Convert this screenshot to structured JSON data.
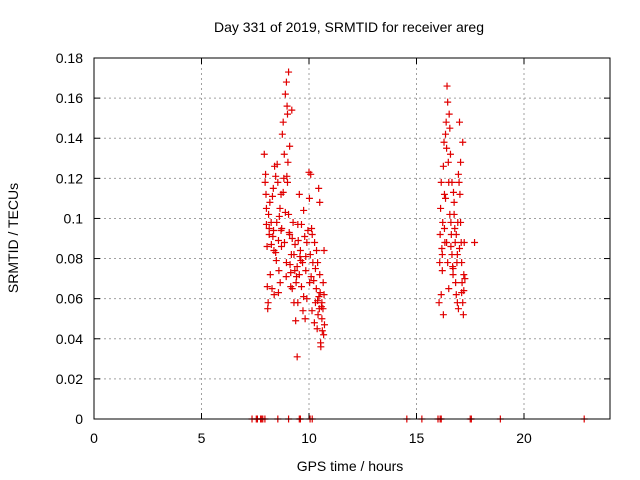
{
  "chart_data": {
    "type": "scatter",
    "title": "Day 331 of 2019, SRMTID for receiver areg",
    "xlabel": "GPS time / hours",
    "ylabel": "SRMTID / TECUs",
    "xlim": [
      0,
      24
    ],
    "ylim": [
      0,
      0.18
    ],
    "x_ticks": [
      0,
      5,
      10,
      15,
      20
    ],
    "x_tick_labels": [
      "0",
      "5",
      "10",
      "15",
      "20"
    ],
    "y_ticks": [
      0,
      0.02,
      0.04,
      0.06,
      0.08,
      0.1,
      0.12,
      0.14,
      0.16,
      0.18
    ],
    "y_tick_labels": [
      "0",
      "0.02",
      "0.04",
      "0.06",
      "0.08",
      "0.1",
      "0.12",
      "0.14",
      "0.16",
      "0.18"
    ],
    "grid": true,
    "marker": "+",
    "series": [
      {
        "name": "SRMTID",
        "color": "#e00000",
        "points": [
          [
            7.35,
            0.0
          ],
          [
            7.55,
            0.0
          ],
          [
            7.6,
            0.0
          ],
          [
            7.75,
            0.0
          ],
          [
            7.8,
            0.0
          ],
          [
            7.85,
            0.0
          ],
          [
            7.95,
            0.0
          ],
          [
            8.55,
            0.0
          ],
          [
            9.05,
            0.0
          ],
          [
            9.55,
            0.0
          ],
          [
            9.6,
            0.0
          ],
          [
            10.05,
            0.0
          ],
          [
            10.15,
            0.0
          ],
          [
            14.55,
            0.0
          ],
          [
            15.25,
            0.0
          ],
          [
            16.0,
            0.0
          ],
          [
            16.1,
            0.0
          ],
          [
            16.15,
            0.0
          ],
          [
            17.5,
            0.0
          ],
          [
            17.55,
            0.0
          ],
          [
            18.9,
            0.0
          ],
          [
            22.8,
            0.0
          ],
          [
            7.92,
            0.132
          ],
          [
            7.96,
            0.118
          ],
          [
            8.0,
            0.112
          ],
          [
            8.02,
            0.097
          ],
          [
            8.05,
            0.086
          ],
          [
            8.06,
            0.066
          ],
          [
            8.08,
            0.055
          ],
          [
            8.1,
            0.058
          ],
          [
            8.12,
            0.102
          ],
          [
            8.15,
            0.092
          ],
          [
            8.18,
            0.108
          ],
          [
            8.2,
            0.072
          ],
          [
            8.24,
            0.098
          ],
          [
            8.28,
            0.065
          ],
          [
            8.3,
            0.111
          ],
          [
            8.34,
            0.115
          ],
          [
            8.37,
            0.084
          ],
          [
            8.4,
            0.126
          ],
          [
            8.45,
            0.121
          ],
          [
            8.48,
            0.079
          ],
          [
            8.52,
            0.127
          ],
          [
            8.55,
            0.118
          ],
          [
            8.58,
            0.089
          ],
          [
            8.62,
            0.101
          ],
          [
            8.66,
            0.068
          ],
          [
            8.7,
            0.112
          ],
          [
            8.73,
            0.095
          ],
          [
            8.76,
            0.142
          ],
          [
            8.8,
            0.148
          ],
          [
            8.83,
            0.12
          ],
          [
            8.86,
            0.088
          ],
          [
            8.9,
            0.103
          ],
          [
            8.94,
            0.071
          ],
          [
            8.97,
            0.121
          ],
          [
            9.0,
            0.118
          ],
          [
            9.02,
            0.128
          ],
          [
            9.05,
            0.102
          ],
          [
            9.08,
            0.093
          ],
          [
            9.12,
            0.077
          ],
          [
            9.15,
            0.066
          ],
          [
            9.18,
            0.082
          ],
          [
            9.22,
            0.065
          ],
          [
            9.26,
            0.098
          ],
          [
            9.3,
            0.058
          ],
          [
            9.34,
            0.074
          ],
          [
            9.38,
            0.049
          ],
          [
            9.42,
            0.071
          ],
          [
            9.45,
            0.031
          ],
          [
            9.48,
            0.058
          ],
          [
            9.5,
            0.089
          ],
          [
            9.55,
            0.072
          ],
          [
            9.6,
            0.084
          ],
          [
            9.65,
            0.066
          ],
          [
            9.7,
            0.078
          ],
          [
            9.75,
            0.061
          ],
          [
            9.8,
            0.091
          ],
          [
            9.85,
            0.074
          ],
          [
            9.9,
            0.088
          ],
          [
            9.95,
            0.094
          ],
          [
            10.0,
            0.123
          ],
          [
            10.03,
            0.068
          ],
          [
            10.06,
            0.082
          ],
          [
            10.1,
            0.071
          ],
          [
            10.14,
            0.054
          ],
          [
            10.18,
            0.078
          ],
          [
            10.22,
            0.069
          ],
          [
            10.26,
            0.088
          ],
          [
            10.3,
            0.058
          ],
          [
            10.34,
            0.065
          ],
          [
            10.38,
            0.045
          ],
          [
            10.42,
            0.052
          ],
          [
            10.46,
            0.061
          ],
          [
            10.5,
            0.072
          ],
          [
            10.54,
            0.038
          ],
          [
            10.58,
            0.056
          ],
          [
            10.62,
            0.044
          ],
          [
            10.66,
            0.068
          ],
          [
            10.7,
            0.084
          ],
          [
            8.95,
            0.168
          ],
          [
            9.05,
            0.173
          ],
          [
            9.1,
            0.136
          ],
          [
            8.98,
            0.156
          ],
          [
            8.9,
            0.162
          ],
          [
            9.0,
            0.152
          ],
          [
            9.2,
            0.154
          ],
          [
            8.85,
            0.132
          ],
          [
            9.1,
            0.092
          ],
          [
            8.8,
            0.113
          ],
          [
            8.35,
            0.094
          ],
          [
            9.15,
            0.073
          ],
          [
            8.65,
            0.105
          ],
          [
            8.45,
            0.083
          ],
          [
            9.35,
            0.087
          ],
          [
            9.55,
            0.112
          ],
          [
            9.65,
            0.097
          ],
          [
            9.75,
            0.104
          ],
          [
            10.02,
            0.11
          ],
          [
            10.08,
            0.122
          ],
          [
            10.45,
            0.115
          ],
          [
            10.5,
            0.108
          ],
          [
            10.35,
            0.084
          ],
          [
            10.15,
            0.092
          ],
          [
            9.9,
            0.06
          ],
          [
            9.72,
            0.054
          ],
          [
            9.82,
            0.05
          ],
          [
            10.25,
            0.048
          ],
          [
            10.48,
            0.055
          ],
          [
            10.52,
            0.063
          ],
          [
            10.6,
            0.058
          ],
          [
            10.68,
            0.042
          ],
          [
            10.72,
            0.047
          ],
          [
            10.55,
            0.036
          ],
          [
            10.4,
            0.059
          ],
          [
            9.58,
            0.081
          ],
          [
            9.45,
            0.076
          ],
          [
            9.3,
            0.082
          ],
          [
            9.22,
            0.09
          ],
          [
            8.72,
            0.086
          ],
          [
            8.6,
            0.074
          ],
          [
            8.58,
            0.063
          ],
          [
            8.38,
            0.062
          ],
          [
            8.25,
            0.087
          ],
          [
            8.15,
            0.095
          ],
          [
            8.02,
            0.105
          ],
          [
            7.98,
            0.122
          ],
          [
            8.32,
            0.091
          ],
          [
            8.5,
            0.098
          ],
          [
            8.7,
            0.094
          ],
          [
            8.95,
            0.078
          ],
          [
            9.4,
            0.068
          ],
          [
            9.48,
            0.097
          ],
          [
            9.62,
            0.079
          ],
          [
            9.85,
            0.081
          ],
          [
            10.12,
            0.095
          ],
          [
            10.3,
            0.075
          ],
          [
            10.4,
            0.078
          ],
          [
            10.6,
            0.05
          ],
          [
            10.65,
            0.055
          ],
          [
            10.7,
            0.062
          ],
          [
            16.05,
            0.058
          ],
          [
            16.08,
            0.078
          ],
          [
            16.1,
            0.092
          ],
          [
            16.12,
            0.105
          ],
          [
            16.15,
            0.118
          ],
          [
            16.18,
            0.085
          ],
          [
            16.2,
            0.082
          ],
          [
            16.22,
            0.098
          ],
          [
            16.25,
            0.126
          ],
          [
            16.28,
            0.138
          ],
          [
            16.3,
            0.112
          ],
          [
            16.32,
            0.088
          ],
          [
            16.35,
            0.142
          ],
          [
            16.38,
            0.148
          ],
          [
            16.4,
            0.135
          ],
          [
            16.42,
            0.166
          ],
          [
            16.45,
            0.158
          ],
          [
            16.48,
            0.128
          ],
          [
            16.5,
            0.118
          ],
          [
            16.52,
            0.152
          ],
          [
            16.55,
            0.145
          ],
          [
            16.58,
            0.132
          ],
          [
            16.6,
            0.098
          ],
          [
            16.62,
            0.092
          ],
          [
            16.65,
            0.082
          ],
          [
            16.68,
            0.076
          ],
          [
            16.7,
            0.072
          ],
          [
            16.72,
            0.113
          ],
          [
            16.75,
            0.108
          ],
          [
            16.78,
            0.095
          ],
          [
            16.8,
            0.088
          ],
          [
            16.82,
            0.068
          ],
          [
            16.85,
            0.062
          ],
          [
            16.88,
            0.078
          ],
          [
            16.9,
            0.082
          ],
          [
            16.92,
            0.098
          ],
          [
            16.95,
            0.122
          ],
          [
            16.98,
            0.118
          ],
          [
            17.0,
            0.148
          ],
          [
            17.02,
            0.112
          ],
          [
            17.05,
            0.098
          ],
          [
            17.08,
            0.088
          ],
          [
            17.1,
            0.078
          ],
          [
            17.12,
            0.068
          ],
          [
            17.15,
            0.058
          ],
          [
            17.18,
            0.052
          ],
          [
            17.2,
            0.072
          ],
          [
            17.22,
            0.088
          ],
          [
            17.25,
            0.07
          ],
          [
            17.7,
            0.088
          ],
          [
            16.15,
            0.062
          ],
          [
            16.3,
            0.095
          ],
          [
            16.45,
            0.078
          ],
          [
            16.6,
            0.086
          ],
          [
            16.75,
            0.102
          ],
          [
            16.9,
            0.058
          ],
          [
            17.05,
            0.128
          ],
          [
            17.15,
            0.138
          ],
          [
            16.55,
            0.102
          ],
          [
            16.35,
            0.11
          ],
          [
            16.2,
            0.074
          ],
          [
            16.65,
            0.118
          ],
          [
            16.95,
            0.055
          ],
          [
            17.1,
            0.063
          ],
          [
            16.4,
            0.088
          ],
          [
            16.85,
            0.092
          ],
          [
            17.2,
            0.064
          ],
          [
            16.25,
            0.052
          ],
          [
            16.5,
            0.065
          ],
          [
            16.7,
            0.075
          ],
          [
            17.0,
            0.085
          ]
        ]
      }
    ]
  }
}
